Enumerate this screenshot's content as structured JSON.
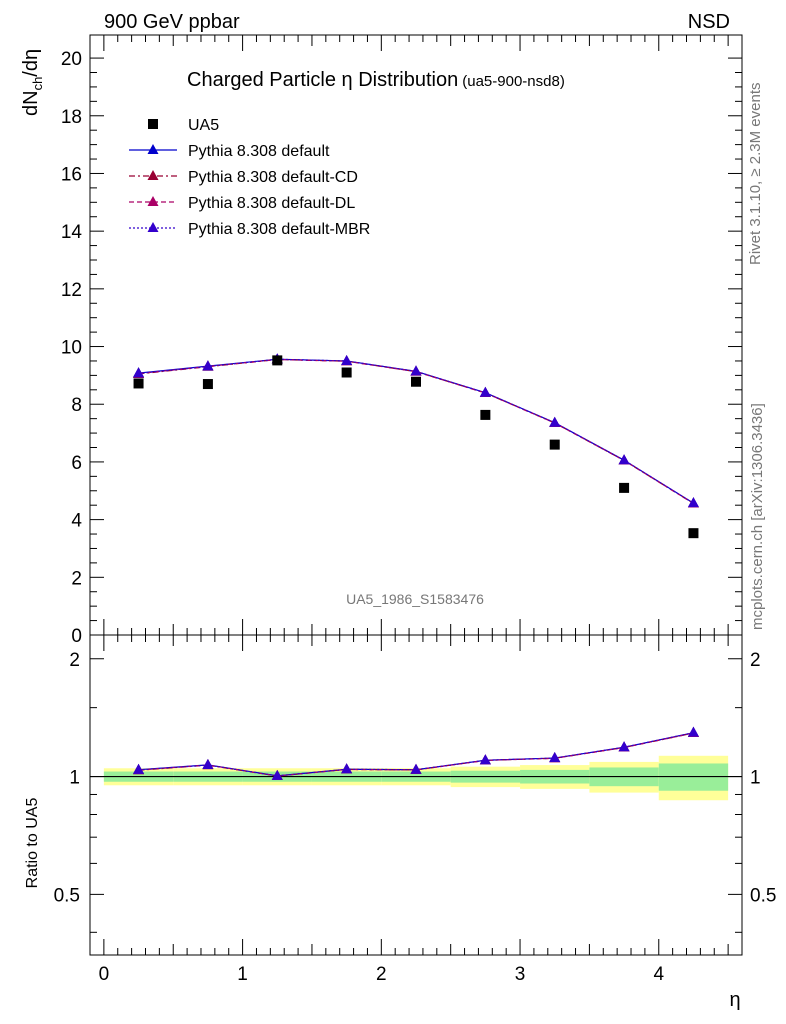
{
  "header": {
    "left": "900 GeV ppbar",
    "right": "NSD"
  },
  "side_labels": {
    "rivet": "Rivet 3.1.10, ≥ 2.3M events",
    "mcplots": "mcplots.cern.ch [arXiv:1306.3436]"
  },
  "chart_data": {
    "type": "scatter",
    "title": "Charged Particle η Distribution",
    "title_suffix": "(ua5-900-nsd8)",
    "watermark": "UA5_1986_S1583476",
    "xlabel": "η",
    "ylabel": "dN_ch/dη",
    "ratio_ylabel": "Ratio to UA5",
    "xlim": [
      -0.1,
      4.6
    ],
    "ylim": [
      0,
      20.8
    ],
    "ratio_ylim": [
      0.35,
      2.3
    ],
    "x_ticks": [
      0,
      1,
      2,
      3,
      4
    ],
    "y_ticks": [
      0,
      2,
      4,
      6,
      8,
      10,
      12,
      14,
      16,
      18,
      20
    ],
    "ratio_ticks": [
      0.5,
      1,
      2
    ],
    "x": [
      0.25,
      0.75,
      1.25,
      1.75,
      2.25,
      2.75,
      3.25,
      3.75,
      4.25
    ],
    "data": {
      "name": "UA5",
      "values": [
        8.72,
        8.7,
        9.52,
        9.1,
        8.78,
        7.63,
        6.6,
        5.1,
        3.53
      ],
      "band_inner": [
        0.03,
        0.03,
        0.03,
        0.03,
        0.03,
        0.035,
        0.04,
        0.055,
        0.08
      ],
      "band_outer": [
        0.05,
        0.05,
        0.05,
        0.05,
        0.05,
        0.06,
        0.07,
        0.09,
        0.13
      ]
    },
    "series": [
      {
        "name": "Pythia 8.308 default",
        "color": "#0000cc",
        "style": "solid",
        "values": [
          9.08,
          9.32,
          9.56,
          9.5,
          9.14,
          8.4,
          7.36,
          6.06,
          4.57
        ]
      },
      {
        "name": "Pythia 8.308 default-CD",
        "color": "#990033",
        "style": "dashdot",
        "values": [
          9.05,
          9.3,
          9.55,
          9.49,
          9.13,
          8.39,
          7.35,
          6.05,
          4.56
        ]
      },
      {
        "name": "Pythia 8.308 default-DL",
        "color": "#aa0066",
        "style": "dashed",
        "values": [
          9.06,
          9.31,
          9.55,
          9.49,
          9.13,
          8.39,
          7.35,
          6.05,
          4.56
        ]
      },
      {
        "name": "Pythia 8.308 default-MBR",
        "color": "#3300cc",
        "style": "dotted",
        "values": [
          9.07,
          9.31,
          9.56,
          9.5,
          9.14,
          8.4,
          7.36,
          6.06,
          4.57
        ]
      }
    ],
    "legend_position": "top-left",
    "grid": false
  }
}
